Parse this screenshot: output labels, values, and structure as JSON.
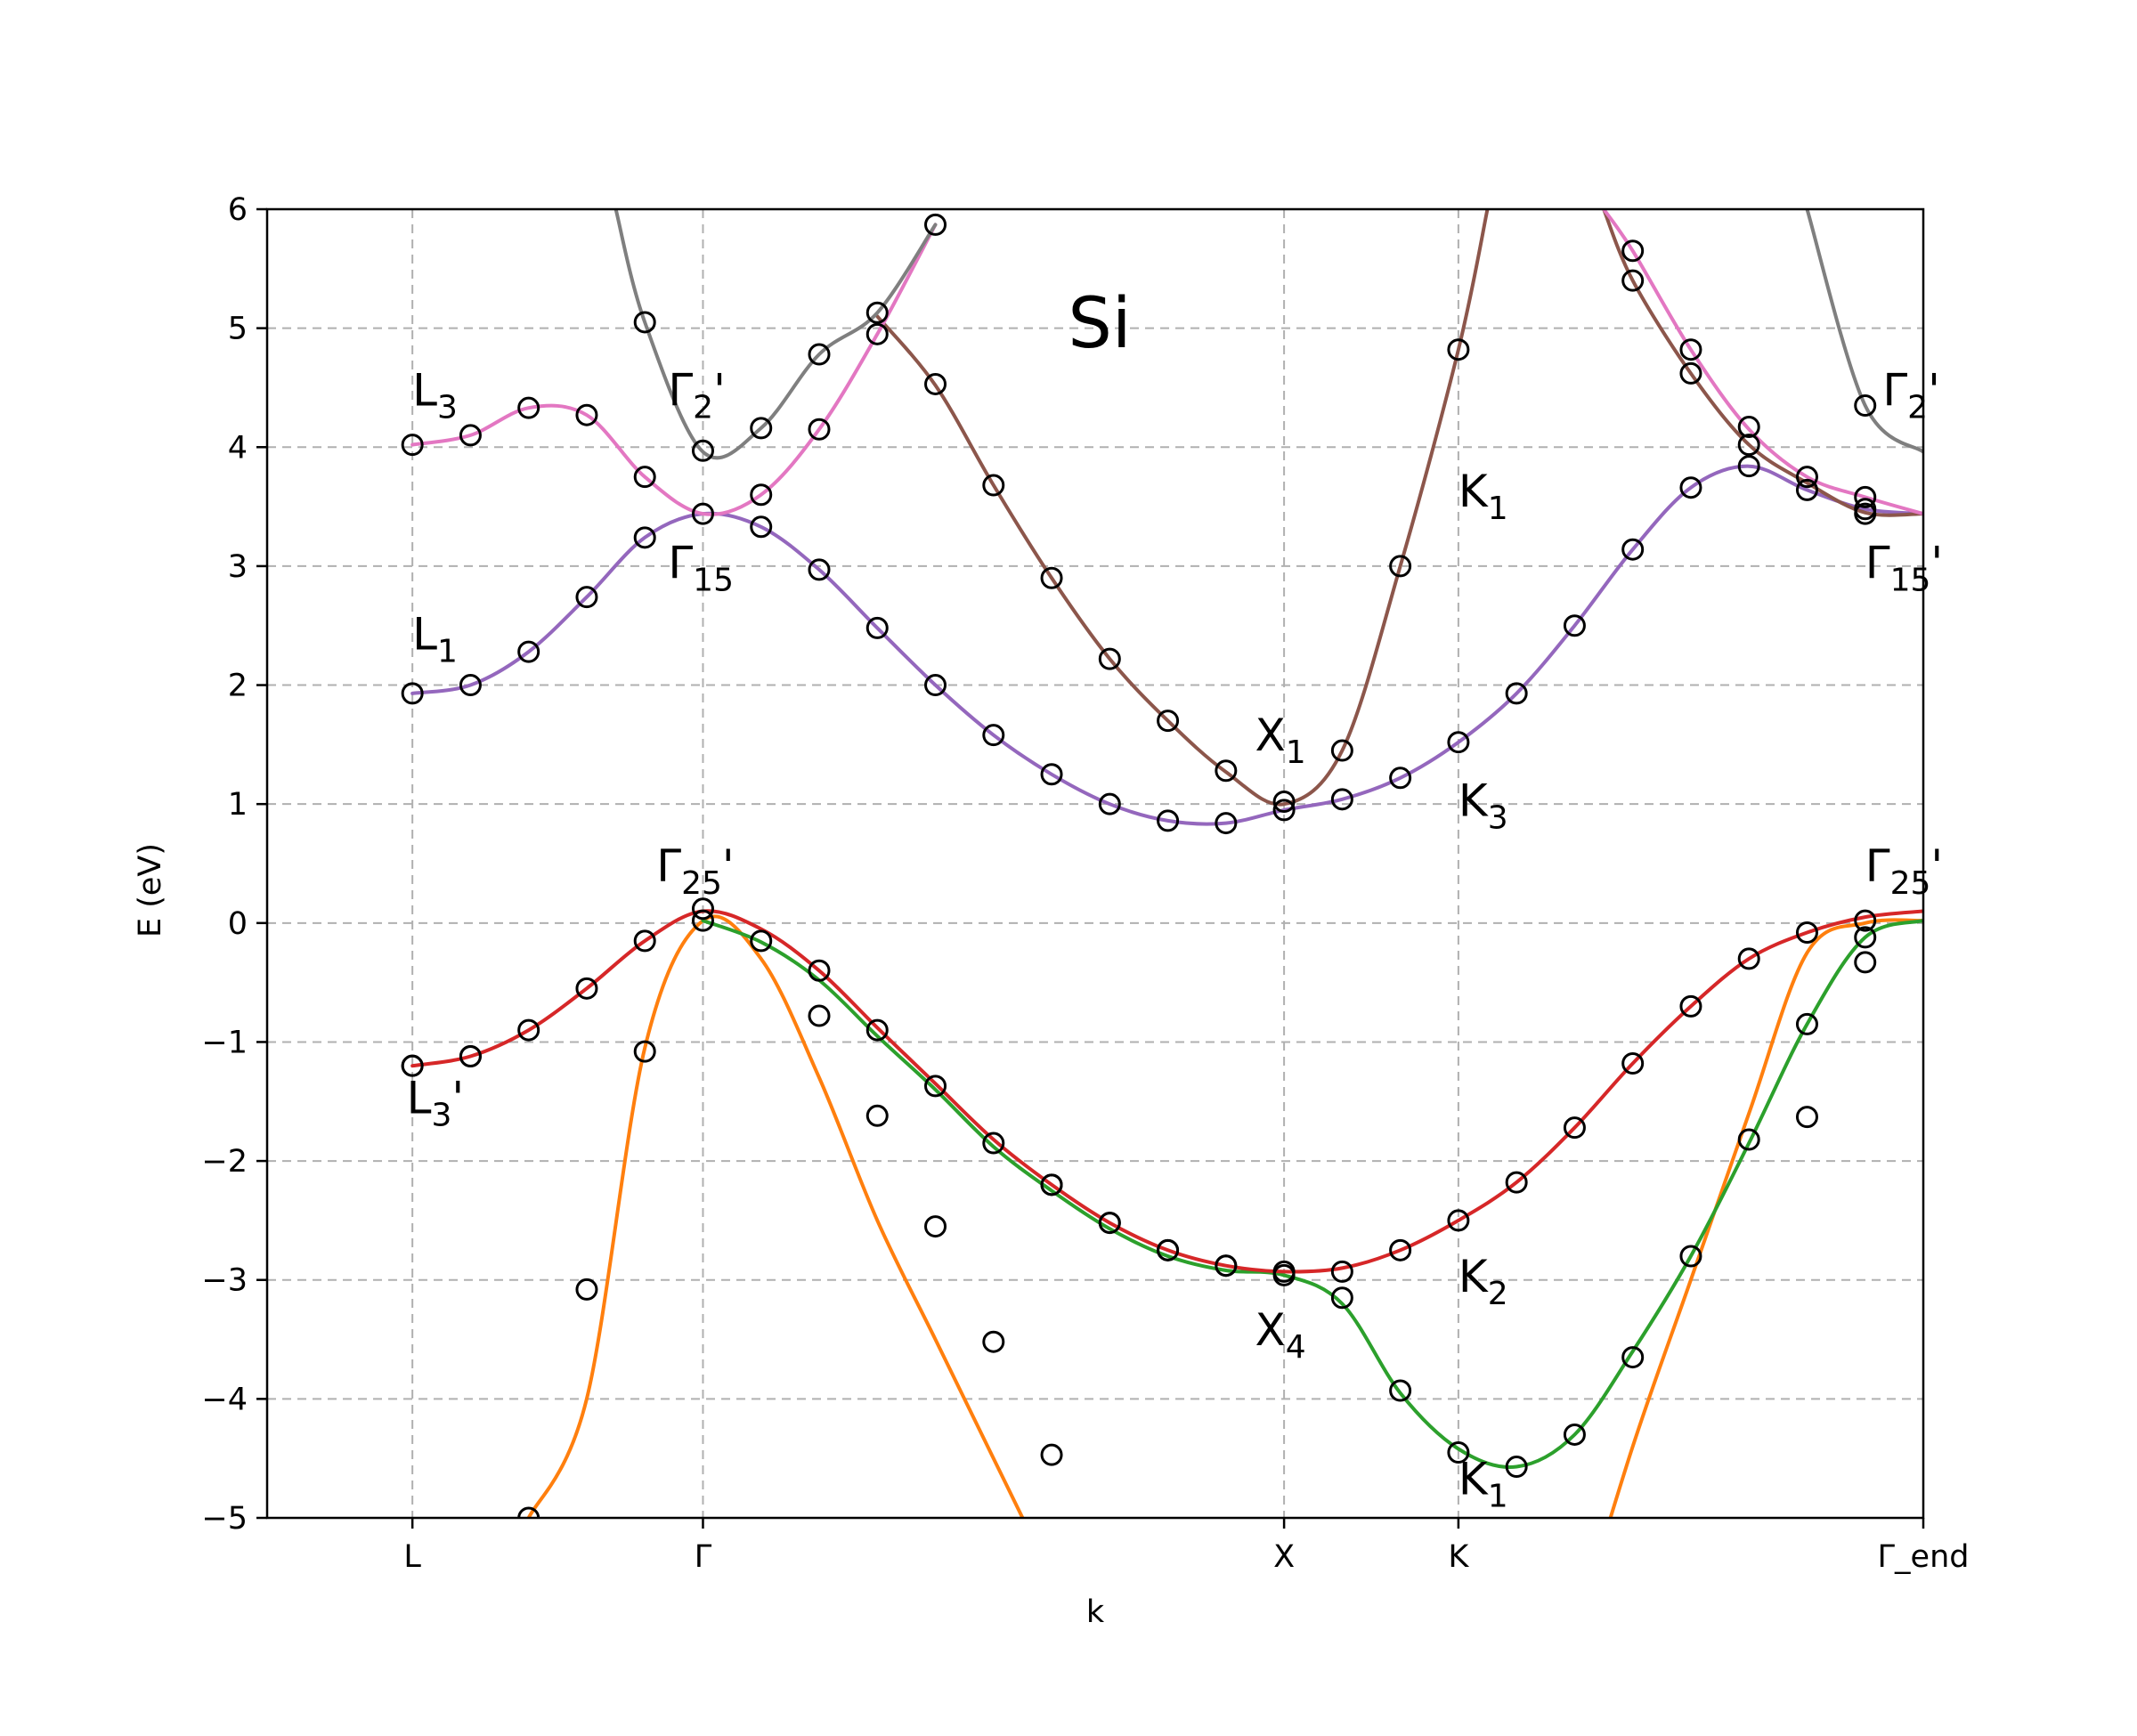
{
  "chart_data": {
    "type": "line",
    "title": "Si",
    "xlabel": "k",
    "ylabel": "E (eV)",
    "ylim": [
      -5,
      6
    ],
    "yticks": [
      -5,
      -4,
      -3,
      -2,
      -1,
      0,
      1,
      2,
      3,
      4,
      5,
      6
    ],
    "ytick_labels": [
      "−5",
      "−4",
      "−3",
      "−2",
      "−1",
      "0",
      "1",
      "2",
      "3",
      "4",
      "5",
      "6"
    ],
    "xlim": [
      -0.25,
      2.6
    ],
    "xticks": [
      {
        "label": "L",
        "x": 0.0
      },
      {
        "label": "Γ",
        "x": 0.5
      },
      {
        "label": "X",
        "x": 1.5
      },
      {
        "label": "K",
        "x": 1.8
      },
      {
        "label": "Γ_end",
        "x": 2.6
      }
    ],
    "grid": true,
    "annotations": [
      {
        "base": "L",
        "sub": "3",
        "suffix": "",
        "x": 0.0,
        "y": 4.35
      },
      {
        "base": "L",
        "sub": "1",
        "suffix": "",
        "x": 0.0,
        "y": 2.3
      },
      {
        "base": "L",
        "sub": "3",
        "suffix": "'",
        "x": -0.01,
        "y": -1.6
      },
      {
        "base": "Γ",
        "sub": "2",
        "suffix": "'",
        "x": 0.44,
        "y": 4.35
      },
      {
        "base": "Γ",
        "sub": "15",
        "suffix": "",
        "x": 0.44,
        "y": 2.9
      },
      {
        "base": "Γ",
        "sub": "25",
        "suffix": "'",
        "x": 0.42,
        "y": 0.35
      },
      {
        "base": "X",
        "sub": "1",
        "suffix": "",
        "x": 1.45,
        "y": 1.45
      },
      {
        "base": "X",
        "sub": "4",
        "suffix": "",
        "x": 1.45,
        "y": -3.55
      },
      {
        "base": "K",
        "sub": "1",
        "suffix": "",
        "x": 1.8,
        "y": 3.5
      },
      {
        "base": "K",
        "sub": "3",
        "suffix": "",
        "x": 1.8,
        "y": 0.9
      },
      {
        "base": "K",
        "sub": "2",
        "suffix": "",
        "x": 1.8,
        "y": -3.1
      },
      {
        "base": "K",
        "sub": "1",
        "suffix": "",
        "x": 1.8,
        "y": -4.8
      },
      {
        "base": "Γ",
        "sub": "2",
        "suffix": "'",
        "x": 2.53,
        "y": 4.35
      },
      {
        "base": "Γ",
        "sub": "15",
        "suffix": "'",
        "x": 2.5,
        "y": 2.9
      },
      {
        "base": "Γ",
        "sub": "25",
        "suffix": "'",
        "x": 2.5,
        "y": 0.35
      }
    ],
    "series": [
      {
        "color": "#ff7f0e",
        "x": [
          0.2,
          0.3,
          0.4,
          0.5,
          0.6,
          0.7,
          0.8,
          0.9,
          1.0,
          1.1,
          1.15
        ],
        "y": [
          -5.0,
          -4.0,
          -1.05,
          0.02,
          -0.3,
          -1.3,
          -2.5,
          -3.5,
          -4.5,
          -5.5,
          -6.0
        ]
      },
      {
        "color": "#ff7f0e",
        "x": [
          2.0,
          2.1,
          2.2,
          2.3,
          2.4,
          2.5,
          2.6
        ],
        "y": [
          -6.0,
          -4.4,
          -3.0,
          -1.6,
          -0.25,
          -0.0,
          0.02
        ]
      },
      {
        "color": "#2ca02c",
        "x": [
          0.5,
          0.6,
          0.7,
          0.8,
          0.9,
          1.0,
          1.1,
          1.2,
          1.3,
          1.4,
          1.5,
          1.6,
          1.7,
          1.8,
          1.9,
          2.0,
          2.1,
          2.2,
          2.3,
          2.4,
          2.5,
          2.6
        ],
        "y": [
          0.02,
          -0.16,
          -0.48,
          -0.95,
          -1.4,
          -1.88,
          -2.25,
          -2.57,
          -2.8,
          -2.92,
          -2.96,
          -3.2,
          -3.95,
          -4.42,
          -4.57,
          -4.3,
          -3.6,
          -2.8,
          -1.85,
          -0.85,
          -0.12,
          0.02
        ]
      },
      {
        "color": "#d62728",
        "x": [
          0.0,
          0.1,
          0.2,
          0.3,
          0.4,
          0.5,
          0.6,
          0.7,
          0.8,
          0.9,
          1.0,
          1.1,
          1.2,
          1.3,
          1.4,
          1.5,
          1.6,
          1.7,
          1.8,
          1.9,
          2.0,
          2.1,
          2.2,
          2.3,
          2.4,
          2.5,
          2.6
        ],
        "y": [
          -1.2,
          -1.12,
          -0.9,
          -0.55,
          -0.15,
          0.1,
          -0.05,
          -0.4,
          -0.88,
          -1.35,
          -1.82,
          -2.2,
          -2.52,
          -2.75,
          -2.88,
          -2.93,
          -2.9,
          -2.75,
          -2.5,
          -2.18,
          -1.72,
          -1.18,
          -0.7,
          -0.3,
          -0.08,
          0.05,
          0.1
        ]
      },
      {
        "color": "#9467bd",
        "x": [
          0.0,
          0.1,
          0.2,
          0.3,
          0.4,
          0.5,
          0.6,
          0.7,
          0.8,
          0.9,
          1.0,
          1.1,
          1.2,
          1.3,
          1.4,
          1.5,
          1.6,
          1.7,
          1.8,
          1.9,
          2.0,
          2.1,
          2.2,
          2.3,
          2.4,
          2.5,
          2.6
        ],
        "y": [
          1.93,
          2.0,
          2.28,
          2.74,
          3.24,
          3.44,
          3.33,
          2.97,
          2.48,
          2.0,
          1.58,
          1.25,
          1.0,
          0.86,
          0.84,
          0.95,
          1.04,
          1.22,
          1.52,
          1.93,
          2.5,
          3.14,
          3.66,
          3.84,
          3.64,
          3.48,
          3.44
        ]
      },
      {
        "color": "#8c564b",
        "x": [
          0.8,
          0.9,
          1.0,
          1.1,
          1.2,
          1.3,
          1.4,
          1.5,
          1.6,
          1.7,
          1.8,
          1.85
        ],
        "y": [
          5.1,
          4.52,
          3.68,
          2.9,
          2.22,
          1.7,
          1.27,
          1.0,
          1.45,
          3.0,
          4.82,
          6.0
        ]
      },
      {
        "color": "#8c564b",
        "x": [
          2.05,
          2.1,
          2.2,
          2.3,
          2.4,
          2.5,
          2.6
        ],
        "y": [
          6.0,
          5.4,
          4.62,
          4.02,
          3.7,
          3.45,
          3.44
        ]
      },
      {
        "color": "#e377c2",
        "x": [
          0.0,
          0.1,
          0.2,
          0.3,
          0.4,
          0.5,
          0.6,
          0.7,
          0.8,
          0.9
        ],
        "y": [
          4.02,
          4.1,
          4.33,
          4.27,
          3.75,
          3.44,
          3.6,
          4.15,
          4.95,
          5.87
        ]
      },
      {
        "color": "#e377c2",
        "x": [
          2.05,
          2.1,
          2.2,
          2.3,
          2.4,
          2.5,
          2.6
        ],
        "y": [
          6.0,
          5.65,
          4.82,
          4.15,
          3.75,
          3.58,
          3.44
        ]
      },
      {
        "color": "#7f7f7f",
        "x": [
          0.35,
          0.4,
          0.5,
          0.6,
          0.7,
          0.8,
          0.9
        ],
        "y": [
          6.0,
          5.05,
          3.96,
          4.16,
          4.78,
          5.13,
          5.87
        ]
      },
      {
        "color": "#7f7f7f",
        "x": [
          2.4,
          2.5,
          2.6
        ],
        "y": [
          6.0,
          4.35,
          3.96
        ]
      }
    ],
    "reference_points": {
      "x": [
        0.0,
        0.0,
        0.0,
        0.0,
        0.1,
        0.1,
        0.1,
        0.1,
        0.2,
        0.2,
        0.2,
        0.2,
        0.3,
        0.3,
        0.3,
        0.3,
        0.4,
        0.4,
        0.4,
        0.4,
        0.4,
        0.5,
        0.5,
        0.5,
        0.5,
        0.6,
        0.6,
        0.6,
        0.6,
        0.7,
        0.7,
        0.7,
        0.7,
        0.7,
        0.8,
        0.8,
        0.8,
        0.8,
        0.8,
        0.9,
        0.9,
        0.9,
        0.9,
        0.9,
        1.0,
        1.0,
        1.0,
        1.0,
        1.1,
        1.1,
        1.1,
        1.1,
        1.1,
        1.2,
        1.2,
        1.2,
        1.2,
        1.3,
        1.3,
        1.3,
        1.3,
        1.4,
        1.4,
        1.4,
        1.4,
        1.5,
        1.5,
        1.5,
        1.5,
        1.6,
        1.6,
        1.6,
        1.6,
        1.7,
        1.7,
        1.7,
        1.7,
        1.8,
        1.8,
        1.8,
        1.8,
        1.9,
        1.9,
        1.9,
        2.0,
        2.0,
        2.0,
        2.1,
        2.1,
        2.1,
        2.1,
        2.1,
        2.2,
        2.2,
        2.2,
        2.2,
        2.2,
        2.3,
        2.3,
        2.3,
        2.3,
        2.3,
        2.4,
        2.4,
        2.4,
        2.4,
        2.4,
        2.5,
        2.5,
        2.5,
        2.5,
        2.5,
        2.5,
        2.5
      ],
      "y": [
        4.02,
        1.93,
        -1.2,
        -1.2,
        4.1,
        2.0,
        -1.12,
        -1.12,
        4.33,
        2.28,
        -0.9,
        -5.0,
        4.27,
        2.74,
        -0.55,
        -3.08,
        5.05,
        3.75,
        3.24,
        -0.15,
        -1.08,
        3.97,
        3.44,
        0.12,
        0.02,
        4.16,
        3.6,
        3.33,
        -0.15,
        4.78,
        4.15,
        2.97,
        -0.4,
        -0.78,
        5.13,
        4.95,
        2.48,
        -0.9,
        -1.62,
        5.87,
        4.53,
        2.0,
        -1.37,
        -2.55,
        3.68,
        1.58,
        -1.85,
        -3.52,
        2.9,
        1.25,
        -2.2,
        -2.2,
        -4.47,
        2.22,
        1.0,
        -2.52,
        -2.52,
        1.7,
        0.86,
        -2.75,
        -2.75,
        1.28,
        0.84,
        -2.88,
        -2.88,
        1.02,
        0.95,
        -2.93,
        -2.96,
        1.45,
        1.04,
        -2.93,
        -3.15,
        3.0,
        1.22,
        -2.75,
        -3.93,
        4.82,
        1.52,
        -2.5,
        -4.45,
        1.93,
        -2.18,
        -4.57,
        2.5,
        -1.72,
        -4.3,
        5.65,
        5.4,
        3.14,
        -1.18,
        -3.65,
        4.82,
        4.62,
        3.66,
        -0.7,
        -2.8,
        4.17,
        4.02,
        3.84,
        -0.3,
        -1.82,
        3.75,
        3.64,
        -0.08,
        -0.85,
        -1.63,
        4.35,
        3.58,
        3.48,
        3.44,
        0.02,
        -0.12,
        -0.33
      ]
    }
  }
}
